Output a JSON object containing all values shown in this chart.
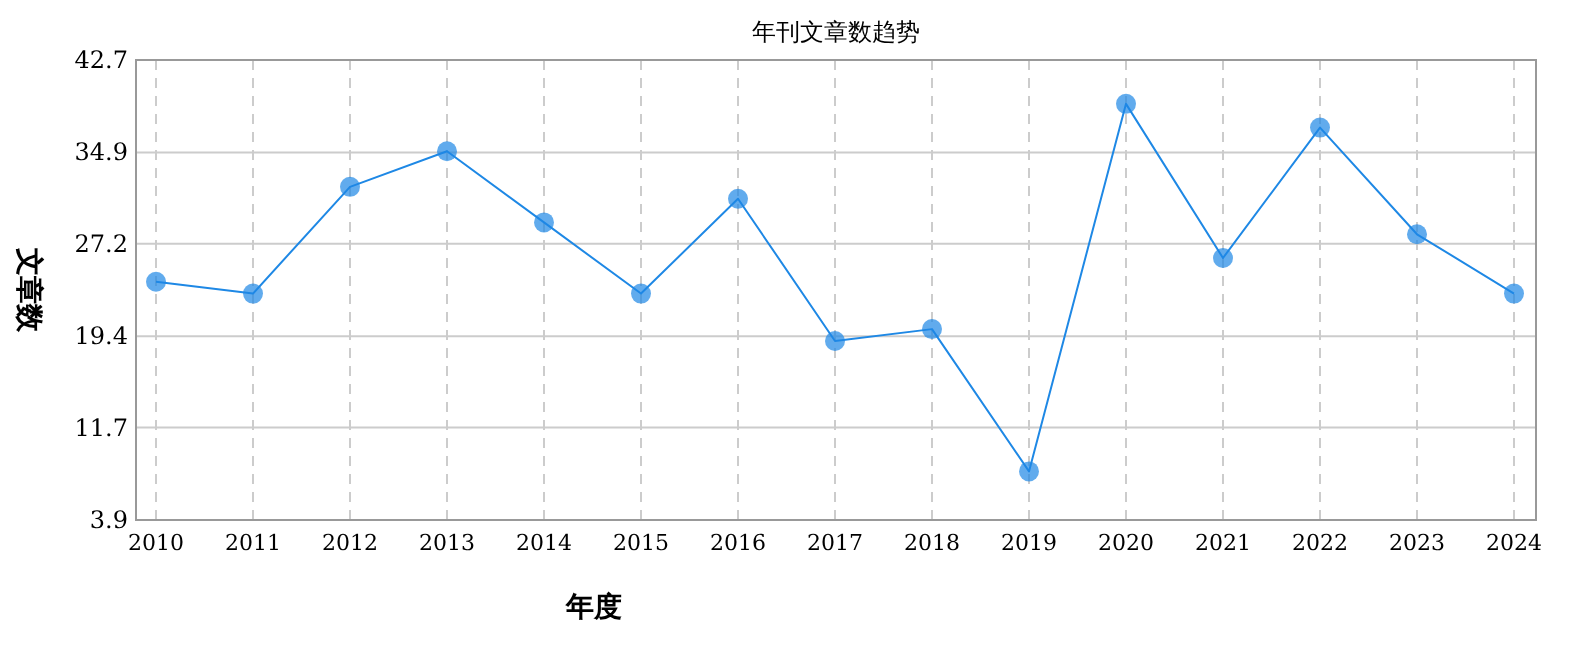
{
  "chart_data": {
    "type": "line",
    "title": "年刊文章数趋势",
    "xlabel": "年度",
    "ylabel": "文章数",
    "categories": [
      "2010",
      "2011",
      "2012",
      "2013",
      "2014",
      "2015",
      "2016",
      "2017",
      "2018",
      "2019",
      "2020",
      "2021",
      "2022",
      "2023",
      "2024"
    ],
    "series": [
      {
        "color": "#1e88e5",
        "values": [
          24,
          23,
          32,
          35,
          29,
          23,
          31,
          19,
          20,
          8,
          39,
          26,
          37,
          28,
          23
        ]
      }
    ],
    "ylim": [
      3.9,
      42.7
    ],
    "yticks": [
      3.9,
      11.7,
      19.4,
      27.2,
      34.9,
      42.7
    ],
    "grid": true,
    "marker": "circle",
    "line_style": "solid"
  }
}
